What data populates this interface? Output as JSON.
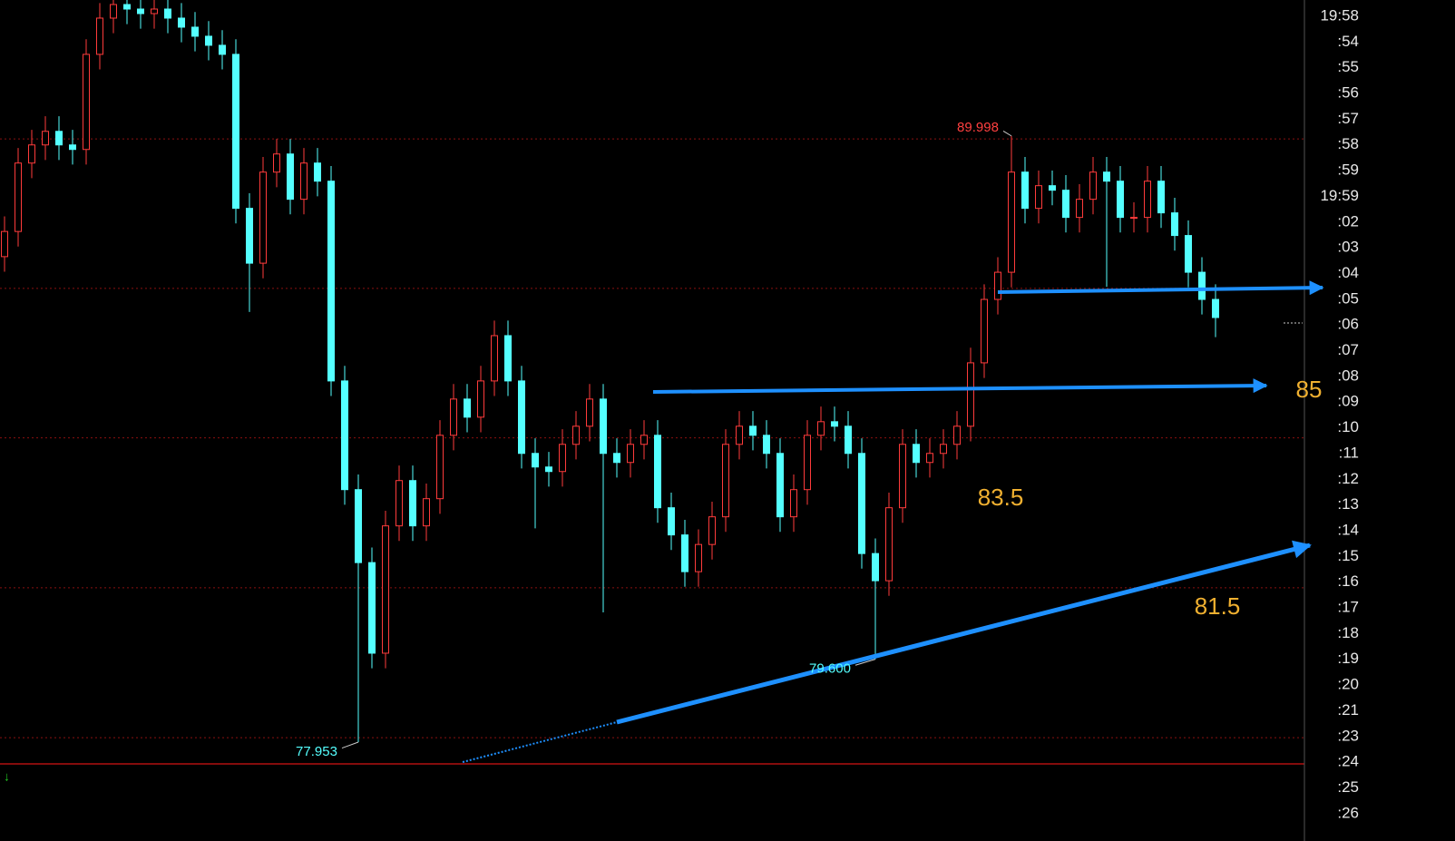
{
  "chart_data": {
    "type": "candlestick",
    "ylim": [
      77.52,
      92.7
    ],
    "up_color": "#ff3b3b",
    "down_color": "#54ffff",
    "hlines": [
      89.94,
      86.97,
      84.0,
      81.02,
      78.04
    ],
    "ohlc": [
      [
        87.6,
        88.4,
        87.3,
        88.1
      ],
      [
        88.1,
        89.76,
        87.8,
        89.46
      ],
      [
        89.46,
        90.12,
        89.16,
        89.82
      ],
      [
        89.82,
        90.39,
        89.52,
        90.09
      ],
      [
        90.09,
        90.39,
        89.52,
        89.82
      ],
      [
        89.82,
        90.12,
        89.43,
        89.73
      ],
      [
        89.73,
        91.92,
        89.43,
        91.62
      ],
      [
        91.62,
        92.64,
        91.32,
        92.34
      ],
      [
        92.34,
        92.91,
        92.04,
        92.61
      ],
      [
        92.61,
        92.91,
        92.22,
        92.52
      ],
      [
        92.52,
        92.82,
        92.13,
        92.43
      ],
      [
        92.43,
        92.82,
        92.13,
        92.52
      ],
      [
        92.52,
        92.82,
        92.04,
        92.34
      ],
      [
        92.34,
        92.64,
        91.86,
        92.16
      ],
      [
        92.16,
        92.46,
        91.68,
        91.98
      ],
      [
        91.98,
        92.28,
        91.5,
        91.8
      ],
      [
        91.8,
        92.1,
        91.32,
        91.62
      ],
      [
        91.62,
        91.92,
        88.26,
        88.56
      ],
      [
        88.56,
        88.86,
        86.5,
        87.47
      ],
      [
        87.47,
        89.58,
        87.17,
        89.28
      ],
      [
        89.28,
        89.94,
        88.98,
        89.64
      ],
      [
        89.64,
        89.94,
        88.44,
        88.74
      ],
      [
        88.74,
        89.76,
        88.44,
        89.46
      ],
      [
        89.46,
        89.76,
        88.8,
        89.1
      ],
      [
        89.1,
        89.4,
        84.83,
        85.13
      ],
      [
        85.13,
        85.43,
        82.67,
        82.97
      ],
      [
        82.97,
        83.27,
        77.953,
        81.52
      ],
      [
        81.52,
        81.82,
        79.42,
        79.72
      ],
      [
        79.72,
        82.55,
        79.42,
        82.25
      ],
      [
        82.25,
        83.45,
        81.95,
        83.15
      ],
      [
        83.15,
        83.45,
        81.95,
        82.25
      ],
      [
        82.25,
        83.09,
        81.95,
        82.79
      ],
      [
        82.79,
        84.35,
        82.49,
        84.05
      ],
      [
        84.05,
        85.07,
        83.75,
        84.77
      ],
      [
        84.77,
        85.07,
        84.11,
        84.41
      ],
      [
        84.41,
        85.43,
        84.11,
        85.13
      ],
      [
        85.13,
        86.33,
        84.83,
        86.03
      ],
      [
        86.03,
        86.33,
        84.83,
        85.13
      ],
      [
        85.13,
        85.43,
        83.39,
        83.69
      ],
      [
        83.69,
        83.99,
        82.2,
        83.42
      ],
      [
        83.42,
        83.72,
        83.03,
        83.33
      ],
      [
        83.33,
        84.17,
        83.03,
        83.87
      ],
      [
        83.87,
        84.53,
        83.57,
        84.23
      ],
      [
        84.23,
        85.07,
        83.93,
        84.77
      ],
      [
        84.77,
        85.07,
        80.53,
        83.69
      ],
      [
        83.69,
        83.99,
        83.21,
        83.51
      ],
      [
        83.51,
        84.17,
        83.21,
        83.87
      ],
      [
        83.87,
        84.35,
        83.57,
        84.05
      ],
      [
        84.05,
        84.35,
        82.31,
        82.61
      ],
      [
        82.61,
        82.91,
        81.77,
        82.07
      ],
      [
        82.07,
        82.37,
        81.04,
        81.34
      ],
      [
        81.34,
        82.18,
        81.04,
        81.88
      ],
      [
        81.88,
        82.73,
        81.58,
        82.43
      ],
      [
        82.43,
        84.17,
        82.13,
        83.87
      ],
      [
        83.87,
        84.53,
        83.57,
        84.23
      ],
      [
        84.23,
        84.53,
        83.75,
        84.05
      ],
      [
        84.05,
        84.35,
        83.39,
        83.69
      ],
      [
        83.69,
        83.99,
        82.13,
        82.43
      ],
      [
        82.43,
        83.27,
        82.13,
        82.97
      ],
      [
        82.97,
        84.35,
        82.67,
        84.05
      ],
      [
        84.05,
        84.62,
        83.75,
        84.32
      ],
      [
        84.32,
        84.62,
        83.93,
        84.23
      ],
      [
        84.23,
        84.53,
        83.39,
        83.69
      ],
      [
        83.69,
        83.99,
        81.4,
        81.7
      ],
      [
        81.7,
        82.0,
        79.6,
        81.16
      ],
      [
        81.16,
        82.91,
        80.86,
        82.61
      ],
      [
        82.61,
        84.17,
        82.31,
        83.87
      ],
      [
        83.87,
        84.17,
        83.21,
        83.51
      ],
      [
        83.51,
        83.99,
        83.21,
        83.69
      ],
      [
        83.69,
        84.17,
        83.39,
        83.87
      ],
      [
        83.87,
        84.53,
        83.57,
        84.23
      ],
      [
        84.23,
        85.79,
        83.93,
        85.49
      ],
      [
        85.49,
        87.05,
        85.19,
        86.75
      ],
      [
        86.75,
        87.59,
        86.45,
        87.29
      ],
      [
        87.29,
        89.998,
        86.99,
        89.28
      ],
      [
        89.28,
        89.58,
        88.26,
        88.56
      ],
      [
        88.56,
        89.31,
        88.26,
        89.01
      ],
      [
        89.01,
        89.31,
        88.62,
        88.92
      ],
      [
        88.92,
        89.22,
        88.08,
        88.38
      ],
      [
        88.38,
        89.04,
        88.08,
        88.74
      ],
      [
        88.74,
        89.58,
        88.44,
        89.28
      ],
      [
        89.28,
        89.58,
        87.0,
        89.1
      ],
      [
        89.1,
        89.4,
        88.08,
        88.38
      ],
      [
        88.38,
        88.68,
        88.08,
        88.38
      ],
      [
        88.38,
        89.4,
        88.08,
        89.1
      ],
      [
        89.1,
        89.4,
        88.17,
        88.47
      ],
      [
        88.47,
        88.77,
        87.72,
        88.02
      ],
      [
        88.02,
        88.32,
        86.99,
        87.29
      ],
      [
        87.29,
        87.59,
        86.45,
        86.75
      ],
      [
        86.75,
        87.05,
        86.0,
        86.39
      ]
    ],
    "price_labels": [
      {
        "text": "89.998",
        "value": 89.998,
        "color": "#ff4040"
      },
      {
        "text": "77.953",
        "value": 77.953,
        "color": "#54ffff"
      },
      {
        "text": "79.600",
        "value": 79.6,
        "color": "#54ffff"
      }
    ],
    "level_labels": [
      "85",
      "83.5",
      "81.5"
    ],
    "time_labels": [
      "19:58",
      ":54",
      ":55",
      ":56",
      ":57",
      ":58",
      ":59",
      "19:59",
      ":02",
      ":03",
      ":04",
      ":05",
      ":06",
      ":07",
      ":08",
      ":09",
      ":10",
      ":11",
      ":12",
      ":13",
      ":14",
      ":15",
      ":16",
      ":17",
      ":18",
      ":19",
      ":20",
      ":21",
      ":23",
      ":24",
      ":25",
      ":26"
    ]
  }
}
